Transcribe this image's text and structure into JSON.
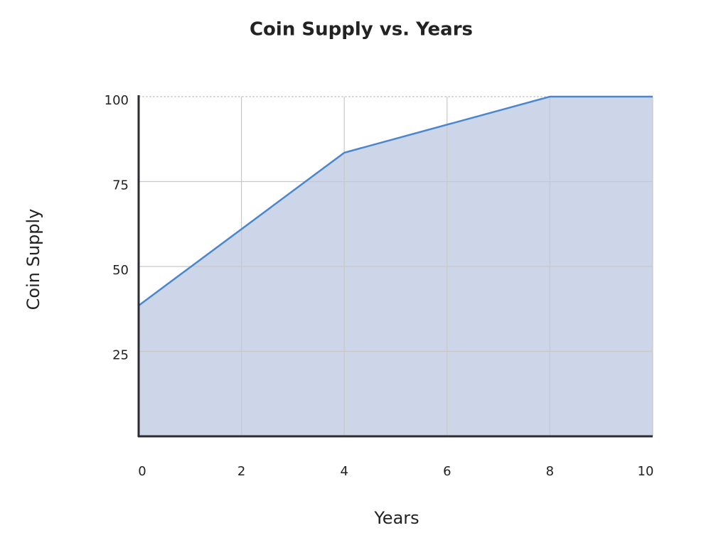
{
  "chart_data": {
    "type": "area",
    "title": "Coin Supply vs. Years",
    "x_label": "Years",
    "y_label": "Coin Supply",
    "x": [
      0,
      4,
      8,
      10
    ],
    "values": [
      38.5,
      83.5,
      100,
      100
    ],
    "color": "#4a86d0",
    "fill": "#ccd6e8",
    "xlim": [
      0,
      10
    ],
    "xticks": [
      0,
      2,
      4,
      6,
      8,
      10
    ],
    "ylim": [
      0,
      100
    ],
    "yticks": [
      25,
      50,
      75,
      100
    ],
    "grid": true
  }
}
